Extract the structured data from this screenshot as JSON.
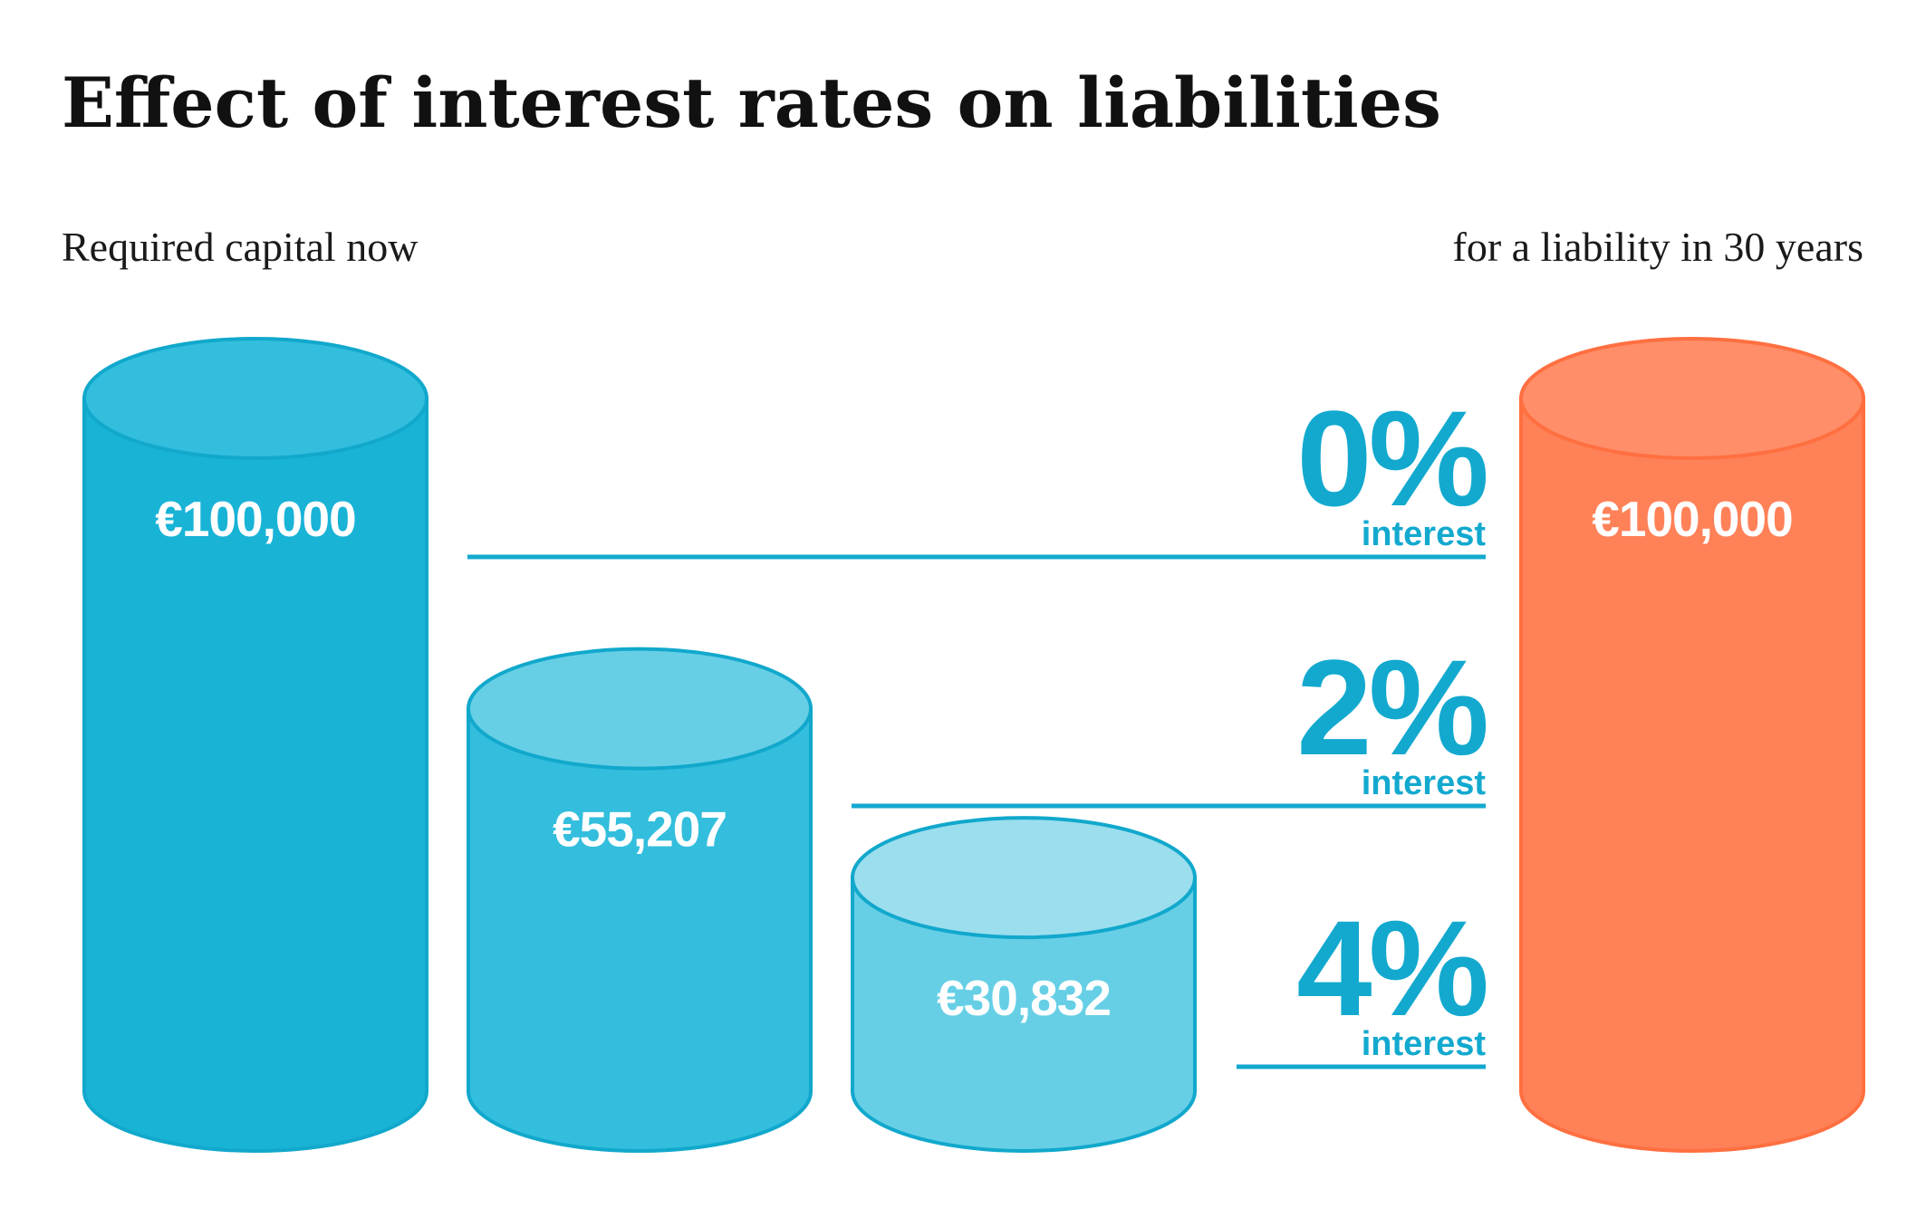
{
  "chart_data": {
    "type": "bar",
    "title": "Effect of interest rates on liabilities",
    "left_label": "Required capital now",
    "right_label": "for a liability in 30 years",
    "categories": [
      "0%",
      "2%",
      "4%"
    ],
    "rate_caption": "interest",
    "values": [
      100000,
      55207,
      30832
    ],
    "value_labels": [
      "€100,000",
      "€55,207",
      "€30,832"
    ],
    "liability": {
      "value": 100000,
      "label": "€100,000"
    },
    "ylim": [
      0,
      100000
    ],
    "grid": false,
    "colors": {
      "bars_body": [
        "#19b3d6",
        "#33bedd",
        "#66cfe6"
      ],
      "bars_top": [
        "#33bedd",
        "#66cfe6",
        "#9bdeee"
      ],
      "outline": "#11a8cc",
      "rate_text": "#13a9cf",
      "line": "#13a9cf",
      "liability_body": "#ff8158",
      "liability_top": "#ff8e69",
      "liability_outline": "#ff6f40"
    }
  }
}
